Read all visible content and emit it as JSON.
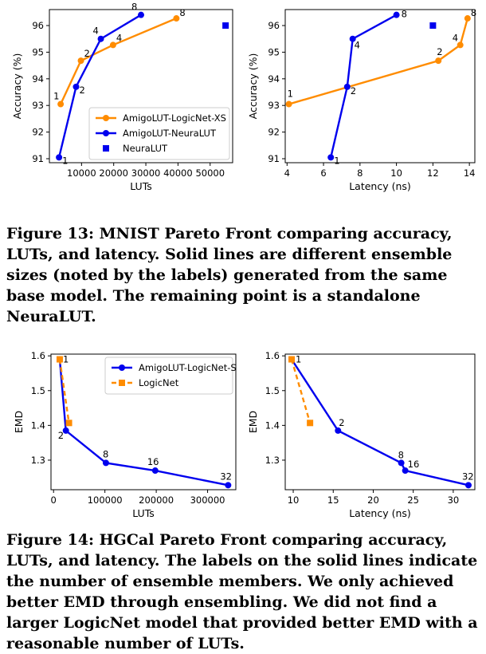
{
  "figure13": {
    "caption": "Figure 13: MNIST Pareto Front comparing accuracy, LUTs, and latency. Solid lines are different ensemble sizes (noted by the labels) generated from the same base model. The remaining point is a standalone NeuraLUT."
  },
  "figure14": {
    "caption": "Figure 14: HGCal Pareto Front comparing accuracy, LUTs, and latency. The labels on the solid lines indicate the number of ensemble members. We only achieved better EMD through ensembling. We did not find a larger LogicNet model that provided better EMD with a reasonable number of LUTs."
  },
  "colors": {
    "orange": "#ff8c00",
    "blue": "#0000ee"
  },
  "chart_data": [
    {
      "id": "c13a",
      "type": "line",
      "xlabel": "LUTs",
      "ylabel": "Accuracy (%)",
      "xlim": [
        0,
        57000
      ],
      "ylim": [
        90.85,
        96.6
      ],
      "xticks": [
        10000,
        20000,
        30000,
        40000,
        50000
      ],
      "xtick_labels": [
        "10000",
        "20000",
        "30000",
        "40000",
        "50000"
      ],
      "yticks": [
        91,
        92,
        93,
        94,
        95,
        96
      ],
      "ytick_labels": [
        "91",
        "92",
        "93",
        "94",
        "95",
        "96"
      ],
      "legend": "lower-right",
      "series": [
        {
          "name": "AmigoLUT-LogicNet-XS",
          "color": "#ff8c00",
          "marker": "circle",
          "style": "solid",
          "x": [
            3500,
            9800,
            19800,
            39500
          ],
          "y": [
            93.05,
            94.68,
            95.27,
            96.27
          ],
          "labels": [
            "1",
            "2",
            "4",
            "8"
          ]
        },
        {
          "name": "AmigoLUT-NeuraLUT",
          "color": "#0000ee",
          "marker": "circle",
          "style": "solid",
          "x": [
            3000,
            8300,
            16000,
            28500
          ],
          "y": [
            91.05,
            93.7,
            95.5,
            96.4
          ],
          "labels": [
            "1",
            "2",
            "4",
            "8"
          ]
        },
        {
          "name": "NeuraLUT",
          "color": "#0000ee",
          "marker": "square",
          "style": "none",
          "x": [
            54800
          ],
          "y": [
            96.0
          ],
          "labels": [
            ""
          ]
        }
      ]
    },
    {
      "id": "c13b",
      "type": "line",
      "xlabel": "Latency (ns)",
      "ylabel": "Accuracy (%)",
      "xlim": [
        3.9,
        14.3
      ],
      "ylim": [
        90.85,
        96.6
      ],
      "xticks": [
        4,
        6,
        8,
        10,
        12,
        14
      ],
      "xtick_labels": [
        "4",
        "6",
        "8",
        "10",
        "12",
        "14"
      ],
      "yticks": [
        91,
        92,
        93,
        94,
        95,
        96
      ],
      "ytick_labels": [
        "91",
        "92",
        "93",
        "94",
        "95",
        "96"
      ],
      "legend": "none",
      "series": [
        {
          "name": "AmigoLUT-LogicNet-XS",
          "color": "#ff8c00",
          "marker": "circle",
          "style": "solid",
          "x": [
            4.1,
            12.3,
            13.5,
            13.9
          ],
          "y": [
            93.05,
            94.68,
            95.27,
            96.27
          ],
          "labels": [
            "1",
            "2",
            "4",
            "8"
          ]
        },
        {
          "name": "AmigoLUT-NeuraLUT",
          "color": "#0000ee",
          "marker": "circle",
          "style": "solid",
          "x": [
            6.4,
            7.3,
            7.6,
            10.0
          ],
          "y": [
            91.05,
            93.7,
            95.5,
            96.4
          ],
          "labels": [
            "1",
            "2",
            "4",
            "8"
          ]
        },
        {
          "name": "NeuraLUT",
          "color": "#0000ee",
          "marker": "square",
          "style": "none",
          "x": [
            12.0
          ],
          "y": [
            96.0
          ],
          "labels": [
            ""
          ]
        }
      ]
    },
    {
      "id": "c14a",
      "type": "line",
      "xlabel": "LUTs",
      "ylabel": "EMD",
      "xlim": [
        -5000,
        355000
      ],
      "ylim": [
        1.215,
        1.605
      ],
      "xticks": [
        0,
        100000,
        200000,
        300000
      ],
      "xtick_labels": [
        "0",
        "100000",
        "200000",
        "300000"
      ],
      "yticks": [
        1.3,
        1.4,
        1.5,
        1.6
      ],
      "ytick_labels": [
        "1.3",
        "1.4",
        "1.5",
        "1.6"
      ],
      "legend": "upper-right",
      "series": [
        {
          "name": "AmigoLUT-LogicNet-S",
          "color": "#0000ee",
          "marker": "circle",
          "style": "solid",
          "x": [
            12000,
            24000,
            102000,
            198000,
            340000
          ],
          "y": [
            1.59,
            1.385,
            1.292,
            1.27,
            1.228
          ],
          "labels": [
            "1",
            "2",
            "8",
            "16",
            "32"
          ]
        },
        {
          "name": "LogicNet",
          "color": "#ff8c00",
          "marker": "square",
          "style": "dashed",
          "x": [
            12000,
            30000
          ],
          "y": [
            1.59,
            1.407
          ],
          "labels": [
            "",
            ""
          ]
        }
      ]
    },
    {
      "id": "c14b",
      "type": "line",
      "xlabel": "Latency (ns)",
      "ylabel": "EMD",
      "xlim": [
        9.0,
        32.7
      ],
      "ylim": [
        1.215,
        1.605
      ],
      "xticks": [
        10,
        15,
        20,
        25,
        30
      ],
      "xtick_labels": [
        "10",
        "15",
        "20",
        "25",
        "30"
      ],
      "yticks": [
        1.3,
        1.4,
        1.5,
        1.6
      ],
      "ytick_labels": [
        "1.3",
        "1.4",
        "1.5",
        "1.6"
      ],
      "legend": "none",
      "series": [
        {
          "name": "AmigoLUT-LogicNet-S",
          "color": "#0000ee",
          "marker": "circle",
          "style": "solid",
          "x": [
            9.8,
            15.6,
            23.5,
            24.0,
            31.9
          ],
          "y": [
            1.59,
            1.385,
            1.292,
            1.27,
            1.228
          ],
          "labels": [
            "1",
            "2",
            "8",
            "16",
            "32"
          ]
        },
        {
          "name": "LogicNet",
          "color": "#ff8c00",
          "marker": "square",
          "style": "dashed",
          "x": [
            9.8,
            12.1
          ],
          "y": [
            1.59,
            1.407
          ],
          "labels": [
            "",
            ""
          ]
        }
      ]
    }
  ]
}
